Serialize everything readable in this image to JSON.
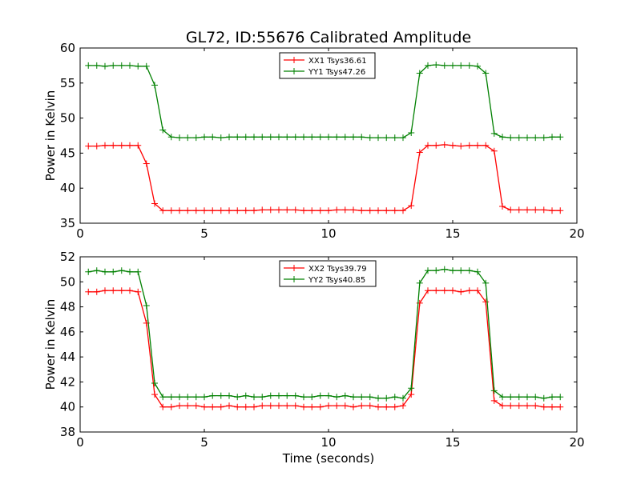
{
  "chart_data": [
    {
      "type": "line",
      "title": "GL72, ID:55676 Calibrated Amplitude",
      "xlabel": "",
      "ylabel": "Power in Kelvin",
      "xlim": [
        0,
        20
      ],
      "ylim": [
        35,
        60
      ],
      "xticks": [
        0,
        5,
        10,
        15,
        20
      ],
      "yticks": [
        35,
        40,
        45,
        50,
        55,
        60
      ],
      "legend_position": "top-center",
      "x": [
        0.33,
        0.67,
        1.0,
        1.33,
        1.67,
        2.0,
        2.33,
        2.67,
        3.0,
        3.33,
        3.67,
        4.0,
        4.33,
        4.67,
        5.0,
        5.33,
        5.67,
        6.0,
        6.33,
        6.67,
        7.0,
        7.33,
        7.67,
        8.0,
        8.33,
        8.67,
        9.0,
        9.33,
        9.67,
        10.0,
        10.33,
        10.67,
        11.0,
        11.33,
        11.67,
        12.0,
        12.33,
        12.67,
        13.0,
        13.33,
        13.67,
        14.0,
        14.33,
        14.67,
        15.0,
        15.33,
        15.67,
        16.0,
        16.33,
        16.67,
        17.0,
        17.33,
        17.67,
        18.0,
        18.33,
        18.67,
        19.0,
        19.33
      ],
      "series": [
        {
          "name": "XX1 Tsys36.61",
          "color": "#ff0000",
          "values": [
            46.0,
            46.0,
            46.1,
            46.1,
            46.1,
            46.1,
            46.1,
            43.5,
            37.8,
            36.8,
            36.8,
            36.8,
            36.8,
            36.8,
            36.8,
            36.8,
            36.8,
            36.8,
            36.8,
            36.8,
            36.8,
            36.9,
            36.9,
            36.9,
            36.9,
            36.9,
            36.8,
            36.8,
            36.8,
            36.8,
            36.9,
            36.9,
            36.9,
            36.8,
            36.8,
            36.8,
            36.8,
            36.8,
            36.8,
            37.5,
            45.1,
            46.1,
            46.1,
            46.2,
            46.1,
            46.0,
            46.1,
            46.1,
            46.1,
            45.3,
            37.4,
            36.9,
            36.9,
            36.9,
            36.9,
            36.9,
            36.8,
            36.8
          ]
        },
        {
          "name": "YY1 Tsys47.26",
          "color": "#008000",
          "values": [
            57.5,
            57.5,
            57.4,
            57.5,
            57.5,
            57.5,
            57.4,
            57.4,
            54.7,
            48.3,
            47.3,
            47.2,
            47.2,
            47.2,
            47.3,
            47.3,
            47.2,
            47.3,
            47.3,
            47.3,
            47.3,
            47.3,
            47.3,
            47.3,
            47.3,
            47.3,
            47.3,
            47.3,
            47.3,
            47.3,
            47.3,
            47.3,
            47.3,
            47.3,
            47.2,
            47.2,
            47.2,
            47.2,
            47.2,
            47.9,
            56.4,
            57.5,
            57.6,
            57.5,
            57.5,
            57.5,
            57.5,
            57.4,
            56.4,
            47.8,
            47.3,
            47.2,
            47.2,
            47.2,
            47.2,
            47.2,
            47.3,
            47.3
          ]
        }
      ]
    },
    {
      "type": "line",
      "title": "",
      "xlabel": "Time (seconds)",
      "ylabel": "Power in Kelvin",
      "xlim": [
        0,
        20
      ],
      "ylim": [
        38,
        52
      ],
      "xticks": [
        0,
        5,
        10,
        15,
        20
      ],
      "yticks": [
        38,
        40,
        42,
        44,
        46,
        48,
        50,
        52
      ],
      "legend_position": "top-center",
      "x": [
        0.33,
        0.67,
        1.0,
        1.33,
        1.67,
        2.0,
        2.33,
        2.67,
        3.0,
        3.33,
        3.67,
        4.0,
        4.33,
        4.67,
        5.0,
        5.33,
        5.67,
        6.0,
        6.33,
        6.67,
        7.0,
        7.33,
        7.67,
        8.0,
        8.33,
        8.67,
        9.0,
        9.33,
        9.67,
        10.0,
        10.33,
        10.67,
        11.0,
        11.33,
        11.67,
        12.0,
        12.33,
        12.67,
        13.0,
        13.33,
        13.67,
        14.0,
        14.33,
        14.67,
        15.0,
        15.33,
        15.67,
        16.0,
        16.33,
        16.67,
        17.0,
        17.33,
        17.67,
        18.0,
        18.33,
        18.67,
        19.0,
        19.33
      ],
      "series": [
        {
          "name": "XX2 Tsys39.79",
          "color": "#ff0000",
          "values": [
            49.2,
            49.2,
            49.3,
            49.3,
            49.3,
            49.3,
            49.2,
            46.7,
            41.0,
            40.0,
            40.0,
            40.1,
            40.1,
            40.1,
            40.0,
            40.0,
            40.0,
            40.1,
            40.0,
            40.0,
            40.0,
            40.1,
            40.1,
            40.1,
            40.1,
            40.1,
            40.0,
            40.0,
            40.0,
            40.1,
            40.1,
            40.1,
            40.0,
            40.1,
            40.1,
            40.0,
            40.0,
            40.0,
            40.1,
            41.0,
            48.3,
            49.3,
            49.3,
            49.3,
            49.3,
            49.2,
            49.3,
            49.3,
            48.4,
            40.5,
            40.1,
            40.1,
            40.1,
            40.1,
            40.1,
            40.0,
            40.0,
            40.0
          ]
        },
        {
          "name": "YY2 Tsys40.85",
          "color": "#008000",
          "values": [
            50.8,
            50.9,
            50.8,
            50.8,
            50.9,
            50.8,
            50.8,
            48.1,
            41.9,
            40.8,
            40.8,
            40.8,
            40.8,
            40.8,
            40.8,
            40.9,
            40.9,
            40.9,
            40.8,
            40.9,
            40.8,
            40.8,
            40.9,
            40.9,
            40.9,
            40.9,
            40.8,
            40.8,
            40.9,
            40.9,
            40.8,
            40.9,
            40.8,
            40.8,
            40.8,
            40.7,
            40.7,
            40.8,
            40.7,
            41.5,
            49.9,
            50.9,
            50.9,
            51.0,
            50.9,
            50.9,
            50.9,
            50.8,
            49.9,
            41.3,
            40.8,
            40.8,
            40.8,
            40.8,
            40.8,
            40.7,
            40.8,
            40.8
          ]
        }
      ]
    }
  ]
}
